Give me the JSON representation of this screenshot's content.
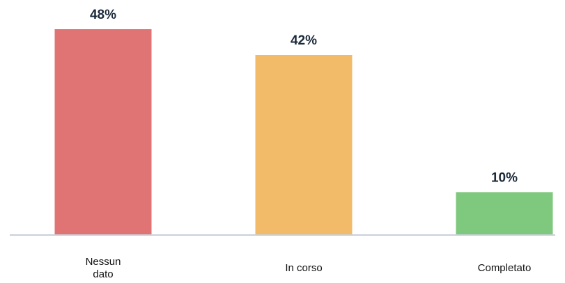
{
  "chart_data": {
    "type": "bar",
    "categories": [
      "Nessun dato",
      "In corso",
      "Completato"
    ],
    "category_lines": [
      [
        "Nessun",
        "dato"
      ],
      [
        "In corso"
      ],
      [
        "Completato"
      ]
    ],
    "values": [
      48,
      42,
      10
    ],
    "value_labels": [
      "48%",
      "42%",
      "10%"
    ],
    "colors": [
      "#e07373",
      "#f2bb6a",
      "#7fc97f"
    ],
    "baseline_color": "#c9d0d8",
    "ylim": [
      0,
      48
    ],
    "grid": false,
    "legend": "none"
  }
}
